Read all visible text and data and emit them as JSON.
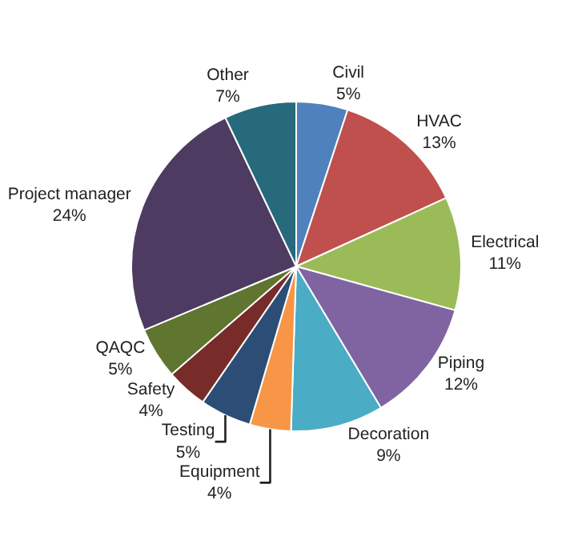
{
  "chart_data": {
    "type": "pie",
    "categories": [
      "Civil",
      "HVAC",
      "Electrical",
      "Piping",
      "Decoration",
      "Equipment",
      "Testing",
      "Safety",
      "QAQC",
      "Project manager",
      "Other"
    ],
    "values": [
      5,
      13,
      11,
      12,
      9,
      4,
      5,
      4,
      5,
      24,
      7
    ],
    "value_labels": [
      "5%",
      "13%",
      "11%",
      "12%",
      "9%",
      "4%",
      "5%",
      "4%",
      "5%",
      "24%",
      "7%"
    ],
    "colors": [
      "#4f81bd",
      "#c0504d",
      "#9bbb59",
      "#8064a2",
      "#4bacc6",
      "#f79646",
      "#2c4d75",
      "#772c2a",
      "#5f7530",
      "#4d3b62",
      "#276a7c"
    ]
  }
}
